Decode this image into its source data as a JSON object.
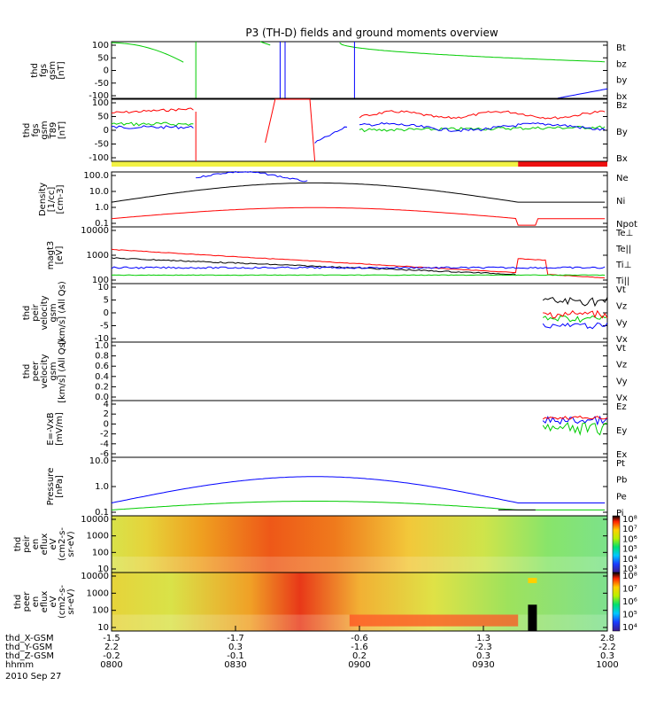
{
  "title": "P3 (TH-D) fields and ground moments overview",
  "chart_data": {
    "type": "line",
    "title": "P3 (TH-D) fields and ground moments overview",
    "x_time_ticks": [
      "0800",
      "0830",
      "0900",
      "0930",
      "1000"
    ],
    "x_label_rows": [
      {
        "label": "thd_X-GSM",
        "values": [
          "-1.5",
          "-1.7",
          "-0.6",
          "1.3",
          "2.8"
        ]
      },
      {
        "label": "thd_Y-GSM",
        "values": [
          "2.2",
          "0.3",
          "-1.6",
          "-2.3",
          "-2.2"
        ]
      },
      {
        "label": "thd_Z-GSM",
        "values": [
          "-0.2",
          "-0.1",
          "0.2",
          "0.3",
          "0.3"
        ]
      },
      {
        "label": "hhmm",
        "values": [
          "0800",
          "0830",
          "0900",
          "0930",
          "1000"
        ]
      }
    ],
    "date": "2010 Sep 27",
    "panels": [
      {
        "ylabel": [
          "thd",
          "fgs",
          "gsm",
          "[nT]"
        ],
        "yticks": [
          "100",
          "50",
          "0",
          "-50",
          "-100"
        ],
        "ylim": [
          -110,
          110
        ],
        "legend": [
          {
            "name": "Bt",
            "color": "#000000"
          },
          {
            "name": "bz",
            "color": "#ff0000"
          },
          {
            "name": "by",
            "color": "#00cc00"
          },
          {
            "name": "bx",
            "color": "#0000ff"
          }
        ]
      },
      {
        "ylabel": [
          "thd",
          "fgs",
          "gsm",
          "T89",
          "[nT]"
        ],
        "yticks": [
          "100",
          "50",
          "0",
          "-50",
          "-100"
        ],
        "ylim": [
          -120,
          110
        ],
        "legend": [
          {
            "name": "Bz",
            "color": "#ff0000"
          },
          {
            "name": "By",
            "color": "#00cc00"
          },
          {
            "name": "Bx",
            "color": "#0000ff"
          }
        ]
      },
      {
        "ylabel": [
          "Density",
          "[1/cc]",
          "[cm-3]"
        ],
        "yticks": [
          "100.0",
          "10.0",
          "1.0",
          "0.1"
        ],
        "log": true,
        "legend": [
          {
            "name": "Ne",
            "color": "#ff0000"
          },
          {
            "name": "Ni",
            "color": "#000000"
          },
          {
            "name": "Npot",
            "color": "#0000ff"
          }
        ]
      },
      {
        "ylabel": [
          "magt3",
          "[eV]"
        ],
        "yticks": [
          "10000",
          "1000",
          "100"
        ],
        "log": true,
        "legend": [
          {
            "name": "Te⊥",
            "color": "#ff0000"
          },
          {
            "name": "Te||",
            "color": "#000000"
          },
          {
            "name": "Ti⊥",
            "color": "#0000ff"
          },
          {
            "name": "Ti||",
            "color": "#00cc00"
          }
        ]
      },
      {
        "ylabel": [
          "thd",
          "peir",
          "velocity",
          "gsm",
          "[km/s] (All Qs)"
        ],
        "yticks": [
          "10",
          "5",
          "0",
          "-5",
          "-10"
        ],
        "legend": [
          {
            "name": "Vt",
            "color": "#000000"
          },
          {
            "name": "Vz",
            "color": "#ff0000"
          },
          {
            "name": "Vy",
            "color": "#00cc00"
          },
          {
            "name": "Vx",
            "color": "#0000ff"
          }
        ]
      },
      {
        "ylabel": [
          "thd",
          "peer",
          "velocity",
          "gsm",
          "[km/s] (All Qs)"
        ],
        "yticks": [
          "1.0",
          "0.8",
          "0.6",
          "0.4",
          "0.2",
          "0.0"
        ],
        "legend": [
          {
            "name": "Vt",
            "color": "#000000"
          },
          {
            "name": "Vz",
            "color": "#ff0000"
          },
          {
            "name": "Vy",
            "color": "#00cc00"
          },
          {
            "name": "Vx",
            "color": "#0000ff"
          }
        ]
      },
      {
        "ylabel": [
          "E=-VxB",
          "[mV/m]"
        ],
        "yticks": [
          "4",
          "2",
          "0",
          "-2",
          "-4",
          "-6"
        ],
        "legend": [
          {
            "name": "Ez",
            "color": "#ff0000"
          },
          {
            "name": "Ey",
            "color": "#00cc00"
          },
          {
            "name": "Ex",
            "color": "#0000ff"
          }
        ]
      },
      {
        "ylabel": [
          "Pressure",
          "[nPa]"
        ],
        "yticks": [
          "10.0",
          "1.0",
          "0.1"
        ],
        "log": true,
        "legend": [
          {
            "name": "Pt",
            "color": "#000000"
          },
          {
            "name": "Pb",
            "color": "#ff0000"
          },
          {
            "name": "Pe",
            "color": "#00cc00"
          },
          {
            "name": "Pi",
            "color": "#0000ff"
          }
        ]
      },
      {
        "ylabel": [
          "thd",
          "peir",
          "en",
          "eflux",
          "eV",
          "(cm2-s-",
          "sr-eV)"
        ],
        "yticks": [
          "10000",
          "1000",
          "100",
          "10"
        ],
        "type": "heatmap",
        "colorbar": [
          "10⁸",
          "10⁷",
          "10⁶",
          "10⁵",
          "10⁴",
          "10³"
        ]
      },
      {
        "ylabel": [
          "thd",
          "peer",
          "en",
          "eflux",
          "eV",
          "(cm2-s-",
          "sr-eV)"
        ],
        "yticks": [
          "10000",
          "1000",
          "100",
          "10"
        ],
        "type": "heatmap",
        "colorbar": [
          "10⁸",
          "10⁷",
          "10⁶",
          "10⁵",
          "10⁴"
        ]
      }
    ]
  }
}
